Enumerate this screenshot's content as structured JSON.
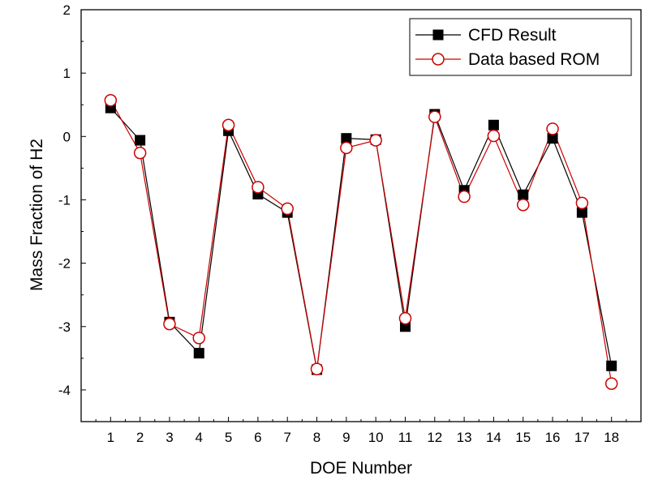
{
  "chart_data": {
    "type": "line",
    "title": "",
    "xlabel": "DOE Number",
    "ylabel": "Mass Fraction of H2",
    "xlim": [
      0,
      19
    ],
    "ylim": [
      -4.5,
      2
    ],
    "x_ticks": [
      1,
      2,
      3,
      4,
      5,
      6,
      7,
      8,
      9,
      10,
      11,
      12,
      13,
      14,
      15,
      16,
      17,
      18
    ],
    "y_ticks": [
      2,
      1,
      0,
      -1,
      -2,
      -3,
      -4
    ],
    "grid": false,
    "legend_position": "top-right",
    "x": [
      1,
      2,
      3,
      4,
      5,
      6,
      7,
      8,
      9,
      10,
      11,
      12,
      13,
      14,
      15,
      16,
      17,
      18
    ],
    "series": [
      {
        "name": "CFD Result",
        "color": "#000000",
        "marker": "filled-square",
        "values": [
          0.45,
          -0.06,
          -2.93,
          -3.42,
          0.09,
          -0.91,
          -1.2,
          -3.68,
          -0.03,
          -0.05,
          -3.0,
          0.35,
          -0.85,
          0.18,
          -0.92,
          -0.03,
          -1.2,
          -3.62
        ]
      },
      {
        "name": "Data based ROM",
        "color": "#cc0000",
        "marker": "open-circle",
        "values": [
          0.57,
          -0.26,
          -2.96,
          -3.18,
          0.18,
          -0.8,
          -1.14,
          -3.67,
          -0.18,
          -0.06,
          -2.87,
          0.31,
          -0.95,
          0.01,
          -1.08,
          0.12,
          -1.05,
          -3.9
        ]
      }
    ]
  }
}
